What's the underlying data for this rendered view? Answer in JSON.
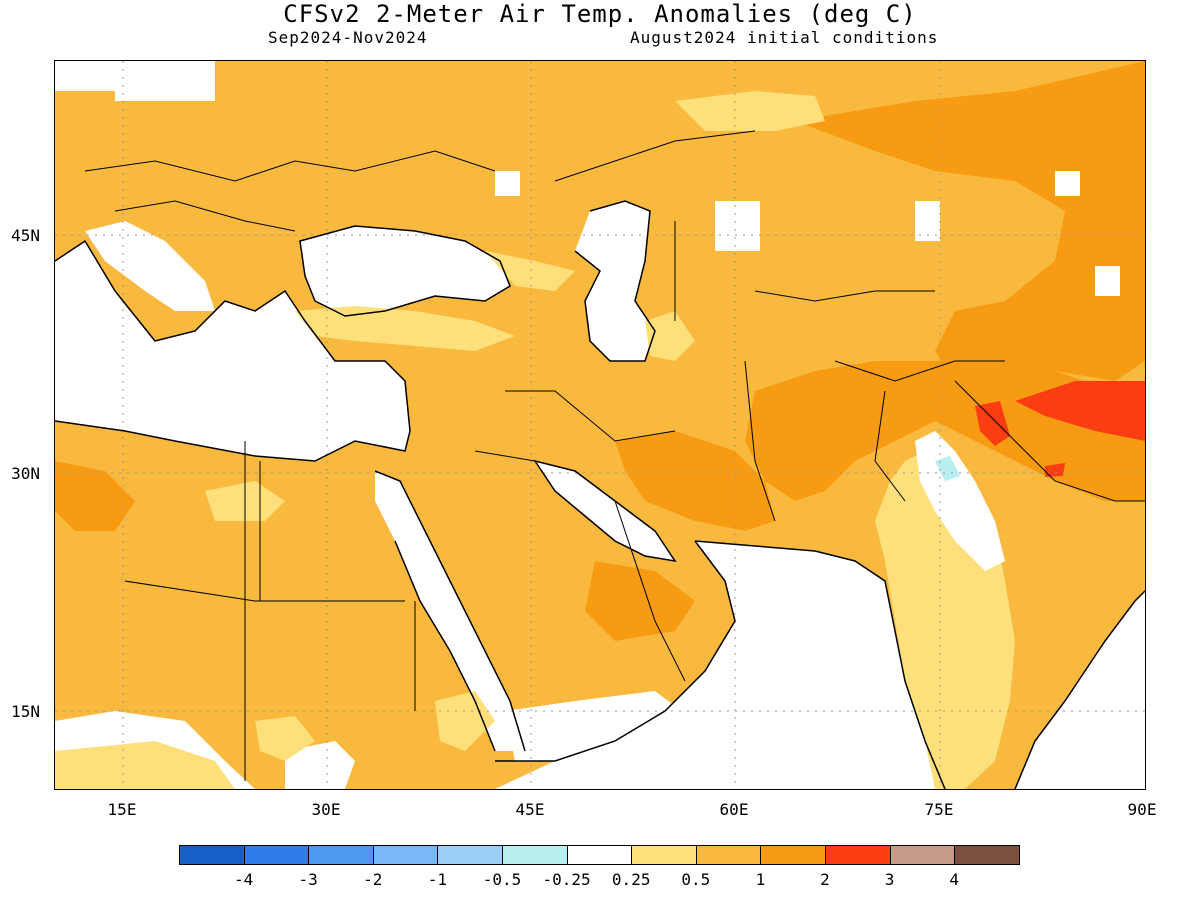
{
  "title": "CFSv2 2-Meter Air Temp. Anomalies (deg C)",
  "period": "Sep2024-Nov2024",
  "init": "August2024 initial conditions",
  "lat_labels": [
    {
      "text": "45N",
      "key": "45"
    },
    {
      "text": "30N",
      "key": "30"
    },
    {
      "text": "15N",
      "key": "15"
    }
  ],
  "lon_labels": [
    {
      "text": "15E",
      "key": "15"
    },
    {
      "text": "30E",
      "key": "30"
    },
    {
      "text": "45E",
      "key": "45"
    },
    {
      "text": "60E",
      "key": "60"
    },
    {
      "text": "75E",
      "key": "75"
    },
    {
      "text": "90E",
      "key": "90"
    }
  ],
  "colorbar": {
    "colors": [
      "#1560c9",
      "#2f7ce8",
      "#4d98f0",
      "#79b8f6",
      "#9ccff8",
      "#b7eef0",
      "#ffffff",
      "#fde07a",
      "#f9b83e",
      "#f79c12",
      "#fb3e12",
      "#c89c8a",
      "#7a5040"
    ],
    "labels": [
      "-4",
      "-3",
      "-2",
      "-1",
      "-0.5",
      "-0.25",
      "0.25",
      "0.5",
      "1",
      "2",
      "3",
      "4"
    ]
  }
}
